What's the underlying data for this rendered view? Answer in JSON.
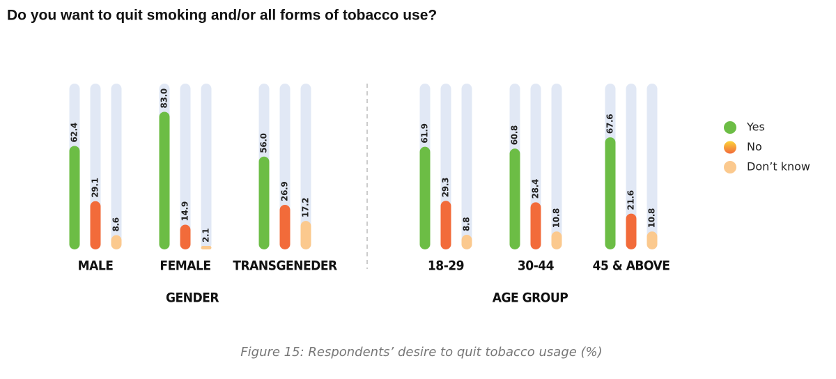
{
  "chart_data": {
    "type": "bar",
    "title": "Do you want to quit smoking and/or all forms of tobacco use?",
    "caption": "Figure 15: Respondents’ desire to quit tobacco usage (%)",
    "groups": [
      {
        "name": "GENDER",
        "categories": [
          "MALE",
          "FEMALE",
          "TRANSGENEDER"
        ]
      },
      {
        "name": "AGE GROUP",
        "categories": [
          "18-29",
          "30-44",
          "45 & ABOVE"
        ]
      }
    ],
    "series": [
      {
        "name": "Yes",
        "color": "#6cbd45",
        "values": [
          62.4,
          83.0,
          56.0,
          61.9,
          60.8,
          67.6
        ],
        "value_labels": [
          "62.4",
          "83.0",
          "56.0",
          "61.9",
          "60.8",
          "67.6"
        ]
      },
      {
        "name": "No",
        "color": "#f26b3a",
        "values": [
          29.1,
          14.9,
          26.9,
          29.3,
          28.4,
          21.6
        ],
        "value_labels": [
          "29.1",
          "14.9",
          "26.9",
          "29.3",
          "28.4",
          "21.6"
        ]
      },
      {
        "name": "Don’t know",
        "color": "#fbc98e",
        "values": [
          8.6,
          2.1,
          17.2,
          8.8,
          10.8,
          10.8
        ],
        "value_labels": [
          "8.6",
          "2.1",
          "17.2",
          "8.8",
          "10.8",
          "10.8"
        ]
      }
    ],
    "ylim": [
      0,
      100
    ],
    "track_color": "#e1e8f5"
  }
}
